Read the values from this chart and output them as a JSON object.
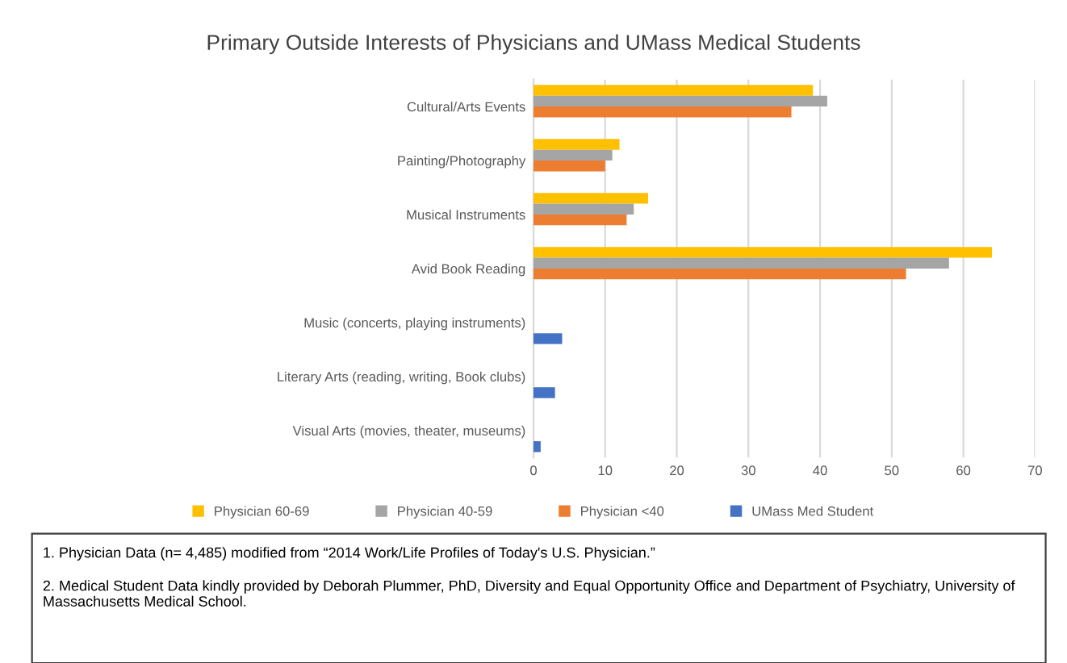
{
  "chart_data": {
    "type": "bar",
    "orientation": "horizontal",
    "title": "Primary Outside Interests of Physicians and UMass Medical Students",
    "categories": [
      "Cultural/Arts Events",
      "Painting/Photography",
      "Musical Instruments",
      "Avid Book Reading",
      "Music (concerts, playing instruments)",
      "Literary Arts (reading, writing, Book clubs)",
      "Visual Arts (movies, theater, museums)"
    ],
    "series": [
      {
        "name": "Physician 60-69",
        "color": "#ffc000",
        "values": [
          39,
          12,
          16,
          64,
          null,
          null,
          null
        ]
      },
      {
        "name": "Physician 40-59",
        "color": "#a5a5a5",
        "values": [
          41,
          11,
          14,
          58,
          null,
          null,
          null
        ]
      },
      {
        "name": "Physician <40",
        "color": "#ed7d31",
        "values": [
          36,
          10,
          13,
          52,
          null,
          null,
          null
        ]
      },
      {
        "name": "UMass Med Student",
        "color": "#4472c4",
        "values": [
          null,
          null,
          null,
          null,
          4,
          3,
          1
        ]
      }
    ],
    "xlim": [
      0,
      70
    ],
    "xticks": [
      0,
      10,
      20,
      30,
      40,
      50,
      60,
      70
    ],
    "grid": "x",
    "legend": "bottom",
    "annotations": [
      "1. Physician Data (n= 4,485) modified from “2014 Work/Life Profiles of Today's U.S. Physician.”",
      "2. Medical Student Data kindly provided by Deborah Plummer, PhD, Diversity and Equal Opportunity Office and Department of Psychiatry, University of Massachusetts Medical School."
    ]
  }
}
